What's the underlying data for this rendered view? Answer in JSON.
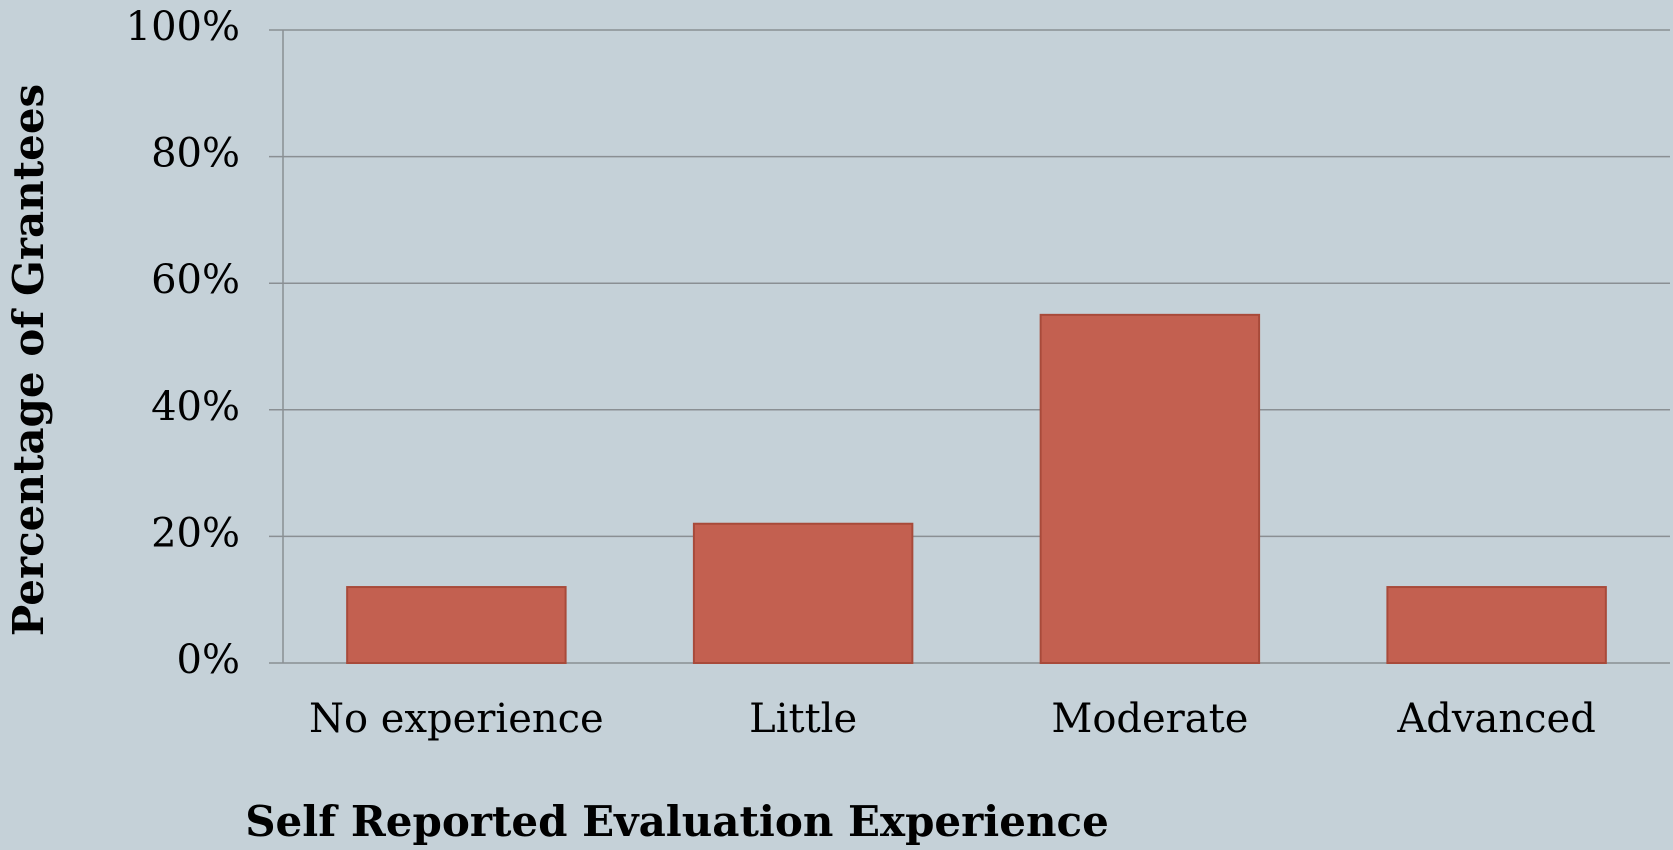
{
  "chart_data": {
    "type": "bar",
    "x_label": "Self Reported Evaluation Experience",
    "y_label": "Percentage of Grantees",
    "categories": [
      "No experience",
      "Little",
      "Moderate",
      "Advanced"
    ],
    "values": [
      12,
      22,
      55,
      12
    ],
    "color": "#c36050",
    "ylim": [
      0,
      100
    ],
    "yticks": [
      {
        "value": 0,
        "label": "0%"
      },
      {
        "value": 20,
        "label": "20%"
      },
      {
        "value": 40,
        "label": "40%"
      },
      {
        "value": 60,
        "label": "60%"
      },
      {
        "value": 80,
        "label": "80%"
      },
      {
        "value": 100,
        "label": "100%"
      }
    ],
    "grid": true
  }
}
